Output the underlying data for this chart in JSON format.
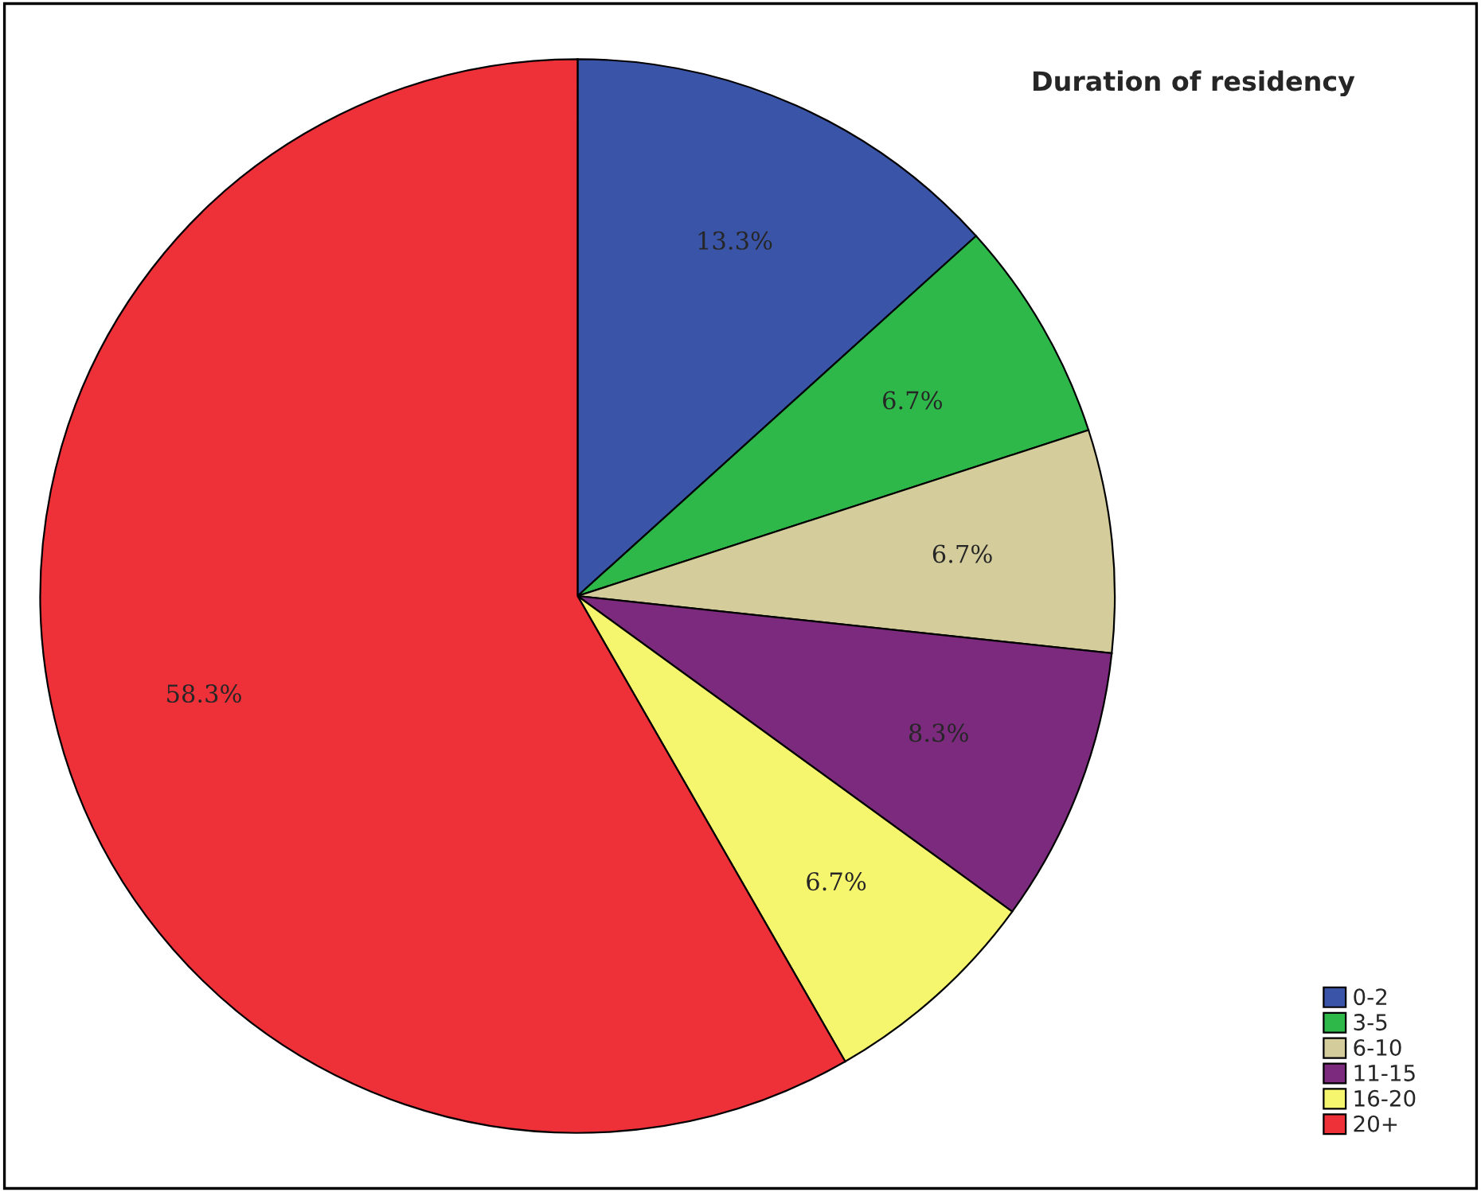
{
  "chart_data": {
    "type": "pie",
    "title": "Duration of residency",
    "categories": [
      "0-2",
      "3-5",
      "6-10",
      "11-15",
      "16-20",
      "20+"
    ],
    "values": [
      13.3,
      6.7,
      6.7,
      8.3,
      6.7,
      58.3
    ],
    "colors": [
      "#3a55a8",
      "#2fb84a",
      "#d4cc9a",
      "#7b2a7e",
      "#f6f56e",
      "#ee3038"
    ],
    "value_labels": [
      "13.3%",
      "6.7%",
      "6.7%",
      "8.3%",
      "6.7%",
      "58.3%"
    ],
    "legend": "bottom right"
  }
}
